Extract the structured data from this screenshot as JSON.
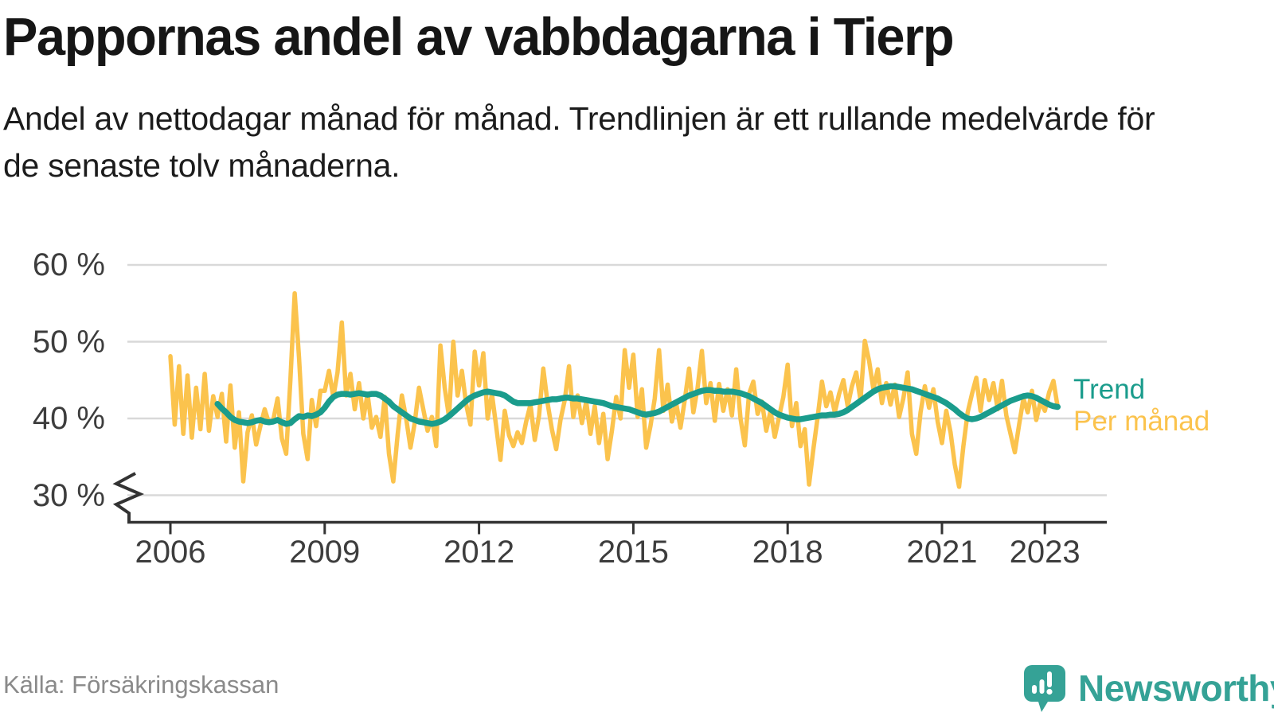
{
  "header": {
    "title": "Pappornas andel av vabbdagarna i Tierp",
    "subtitle": "Andel av nettodagar månad för månad. Trendlinjen är ett rullande medelvärde för de senaste tolv månaderna."
  },
  "legend": {
    "trend": "Trend",
    "per_month": "Per månad"
  },
  "footer": {
    "source": "Källa: Försäkringskassan",
    "brand": "Newsworthy"
  },
  "icons": {
    "newsworthy_icon": "speech-bubble-with-bar-chart-and-exclamation",
    "axis_break_icon": "zigzag-axis-break"
  },
  "colors": {
    "per_month_line": "#FBC34D",
    "trend_line": "#1A9C8C",
    "gridline": "#d9d9d9",
    "axis": "#333333",
    "tick_label": "#3d3d3d",
    "source_text": "#8a8a8a",
    "brand_teal": "#35a296",
    "title_text": "#161616"
  },
  "chart_data": {
    "type": "line",
    "title": "Pappornas andel av vabbdagarna i Tierp",
    "subtitle": "Andel av nettodagar månad för månad. Trendlinjen är ett rullande medelvärde för de senaste tolv månaderna.",
    "x_start": "2006-01",
    "x_end": "2023-04",
    "frequency": "monthly",
    "y_unit": "%",
    "y_axis": {
      "ticks": [
        60,
        50,
        40,
        30
      ],
      "axis_break_below": 30,
      "grid": true
    },
    "x_axis": {
      "tick_years": [
        2006,
        2009,
        2012,
        2015,
        2018,
        2021,
        2023
      ]
    },
    "legend_position": "right-of-line-ends",
    "series": [
      {
        "name": "Per månad",
        "color": "#FBC34D",
        "start_month_index": 0,
        "values": [
          48.1,
          39.2,
          46.8,
          38.0,
          45.6,
          37.5,
          44.0,
          38.6,
          45.8,
          38.4,
          42.9,
          40.2,
          43.2,
          37.0,
          44.3,
          36.2,
          40.8,
          31.8,
          38.2,
          40.4,
          36.6,
          39.0,
          41.2,
          39.4,
          39.8,
          42.6,
          37.4,
          35.4,
          45.0,
          56.3,
          48.0,
          38.0,
          34.7,
          42.4,
          39.0,
          43.6,
          43.6,
          46.2,
          42.8,
          46.0,
          52.5,
          43.0,
          45.8,
          41.2,
          44.6,
          40.0,
          43.2,
          38.8,
          40.2,
          37.6,
          42.8,
          35.4,
          31.8,
          37.8,
          43.0,
          40.0,
          36.2,
          39.4,
          44.0,
          41.2,
          38.4,
          40.2,
          36.4,
          49.5,
          44.0,
          40.2,
          50.0,
          43.0,
          46.2,
          41.8,
          39.2,
          48.7,
          44.3,
          48.5,
          40.0,
          43.2,
          39.0,
          34.6,
          41.0,
          37.8,
          36.4,
          38.2,
          36.8,
          39.6,
          41.8,
          37.2,
          40.4,
          46.5,
          42.0,
          38.6,
          36.0,
          39.8,
          42.4,
          46.8,
          40.2,
          43.0,
          39.4,
          42.2,
          38.0,
          41.6,
          36.8,
          40.6,
          34.7,
          38.4,
          42.8,
          40.0,
          48.9,
          44.0,
          48.3,
          40.2,
          43.8,
          36.2,
          39.0,
          42.6,
          48.9,
          41.0,
          44.4,
          39.6,
          42.0,
          38.8,
          42.4,
          46.5,
          40.8,
          44.0,
          48.8,
          42.0,
          44.6,
          39.7,
          44.5,
          41.0,
          43.8,
          40.4,
          46.4,
          40.0,
          36.5,
          43.2,
          44.8,
          40.6,
          42.2,
          38.4,
          41.0,
          37.6,
          40.2,
          42.8,
          47.0,
          39.0,
          42.0,
          36.4,
          38.6,
          31.4,
          36.0,
          40.2,
          44.8,
          41.6,
          43.4,
          40.8,
          43.2,
          45.0,
          41.6,
          44.2,
          46.0,
          42.4,
          50.1,
          47.5,
          43.8,
          46.4,
          42.0,
          44.6,
          41.8,
          44.4,
          40.2,
          42.6,
          46.0,
          38.0,
          35.4,
          40.8,
          44.2,
          41.4,
          43.8,
          39.6,
          36.8,
          41.0,
          38.2,
          34.0,
          31.1,
          36.4,
          40.8,
          43.2,
          45.3,
          41.0,
          45.0,
          42.4,
          44.6,
          41.2,
          44.9,
          40.4,
          38.0,
          35.6,
          39.2,
          42.6,
          40.8,
          43.6,
          39.8,
          42.2,
          41.0,
          43.4,
          44.9,
          41.5
        ]
      },
      {
        "name": "Trend",
        "color": "#1A9C8C",
        "start_month_index": 11,
        "values": [
          41.9,
          41.3,
          40.8,
          40.2,
          39.8,
          39.6,
          39.5,
          39.4,
          39.5,
          39.7,
          39.8,
          39.6,
          39.5,
          39.6,
          39.8,
          39.5,
          39.3,
          39.4,
          39.9,
          40.3,
          40.2,
          40.4,
          40.3,
          40.5,
          40.8,
          41.4,
          42.2,
          42.8,
          43.1,
          43.2,
          43.2,
          43.1,
          43.2,
          43.3,
          43.2,
          43.1,
          43.2,
          43.2,
          43.0,
          42.6,
          42.2,
          41.6,
          41.2,
          40.8,
          40.4,
          40.0,
          39.8,
          39.6,
          39.5,
          39.4,
          39.3,
          39.4,
          39.6,
          39.9,
          40.3,
          40.8,
          41.3,
          41.8,
          42.3,
          42.7,
          43.0,
          43.2,
          43.4,
          43.5,
          43.4,
          43.3,
          43.2,
          43.0,
          42.6,
          42.2,
          42.0,
          42.0,
          42.0,
          42.0,
          42.1,
          42.2,
          42.3,
          42.4,
          42.5,
          42.5,
          42.6,
          42.7,
          42.7,
          42.6,
          42.6,
          42.5,
          42.4,
          42.3,
          42.2,
          42.1,
          42.0,
          41.8,
          41.6,
          41.5,
          41.4,
          41.3,
          41.2,
          41.0,
          40.8,
          40.6,
          40.5,
          40.6,
          40.7,
          40.9,
          41.2,
          41.5,
          41.8,
          42.1,
          42.4,
          42.7,
          43.0,
          43.2,
          43.4,
          43.6,
          43.7,
          43.7,
          43.6,
          43.6,
          43.5,
          43.5,
          43.5,
          43.4,
          43.3,
          43.1,
          42.9,
          42.6,
          42.3,
          42.0,
          41.6,
          41.2,
          40.8,
          40.5,
          40.3,
          40.1,
          40.0,
          39.9,
          39.9,
          40.0,
          40.1,
          40.2,
          40.3,
          40.4,
          40.4,
          40.5,
          40.5,
          40.6,
          40.8,
          41.1,
          41.5,
          41.9,
          42.3,
          42.7,
          43.1,
          43.5,
          43.8,
          44.0,
          44.1,
          44.2,
          44.2,
          44.1,
          44.0,
          43.9,
          43.8,
          43.6,
          43.4,
          43.2,
          43.0,
          42.8,
          42.6,
          42.3,
          42.0,
          41.6,
          41.2,
          40.7,
          40.3,
          40.0,
          39.9,
          40.0,
          40.2,
          40.5,
          40.8,
          41.1,
          41.4,
          41.7,
          42.0,
          42.3,
          42.5,
          42.7,
          42.9,
          43.0,
          42.9,
          42.7,
          42.4,
          42.1,
          41.8,
          41.6,
          41.5
        ]
      }
    ]
  }
}
